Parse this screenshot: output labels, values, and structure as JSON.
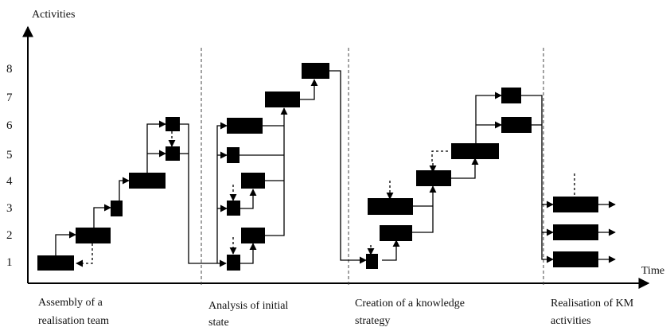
{
  "axes": {
    "y_title": "Activities",
    "x_title": "Time",
    "y_ticks": [
      "1",
      "2",
      "3",
      "4",
      "5",
      "6",
      "7",
      "8"
    ]
  },
  "phases": [
    {
      "line1": "Assembly of a",
      "line2": "realisation team"
    },
    {
      "line1": "Analysis of initial",
      "line2": "state"
    },
    {
      "line1": "Creation of a knowledge",
      "line2": "strategy"
    },
    {
      "line1": "Realisation of KM",
      "line2": "activities"
    }
  ]
}
